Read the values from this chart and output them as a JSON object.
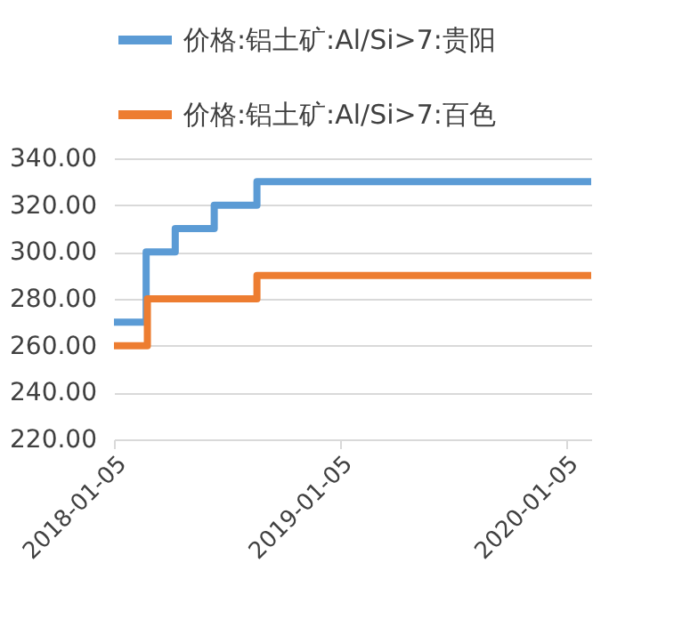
{
  "chart_data": {
    "type": "step",
    "series": [
      {
        "name": "价格:铝土矿:Al/Si>7:贵阳",
        "color": "#5b9bd5",
        "x": [
          "2018-01-05",
          "2018-02-26",
          "2018-04-14",
          "2018-06-16",
          "2018-08-24",
          "2020-02-15"
        ],
        "values": [
          270,
          300,
          310,
          320,
          330,
          330
        ]
      },
      {
        "name": "价格:铝土矿:Al/Si>7:百色",
        "color": "#ed7d31",
        "x": [
          "2018-01-05",
          "2018-02-28",
          "2018-08-24",
          "2020-02-15"
        ],
        "values": [
          260,
          280,
          290,
          290
        ]
      }
    ],
    "xlim": [
      "2018-01-05",
      "2020-02-15"
    ],
    "xticks": [
      "2018-01-05",
      "2019-01-05",
      "2020-01-05"
    ],
    "ylim": [
      220,
      340
    ],
    "yticks": [
      {
        "value": 220,
        "label": "220.00"
      },
      {
        "value": 240,
        "label": "240.00"
      },
      {
        "value": 260,
        "label": "260.00"
      },
      {
        "value": 280,
        "label": "280.00"
      },
      {
        "value": 300,
        "label": "300.00"
      },
      {
        "value": 320,
        "label": "320.00"
      },
      {
        "value": 340,
        "label": "340.00"
      }
    ],
    "grid": "y",
    "legend": "top",
    "marker": "none",
    "line_style": "solid"
  }
}
